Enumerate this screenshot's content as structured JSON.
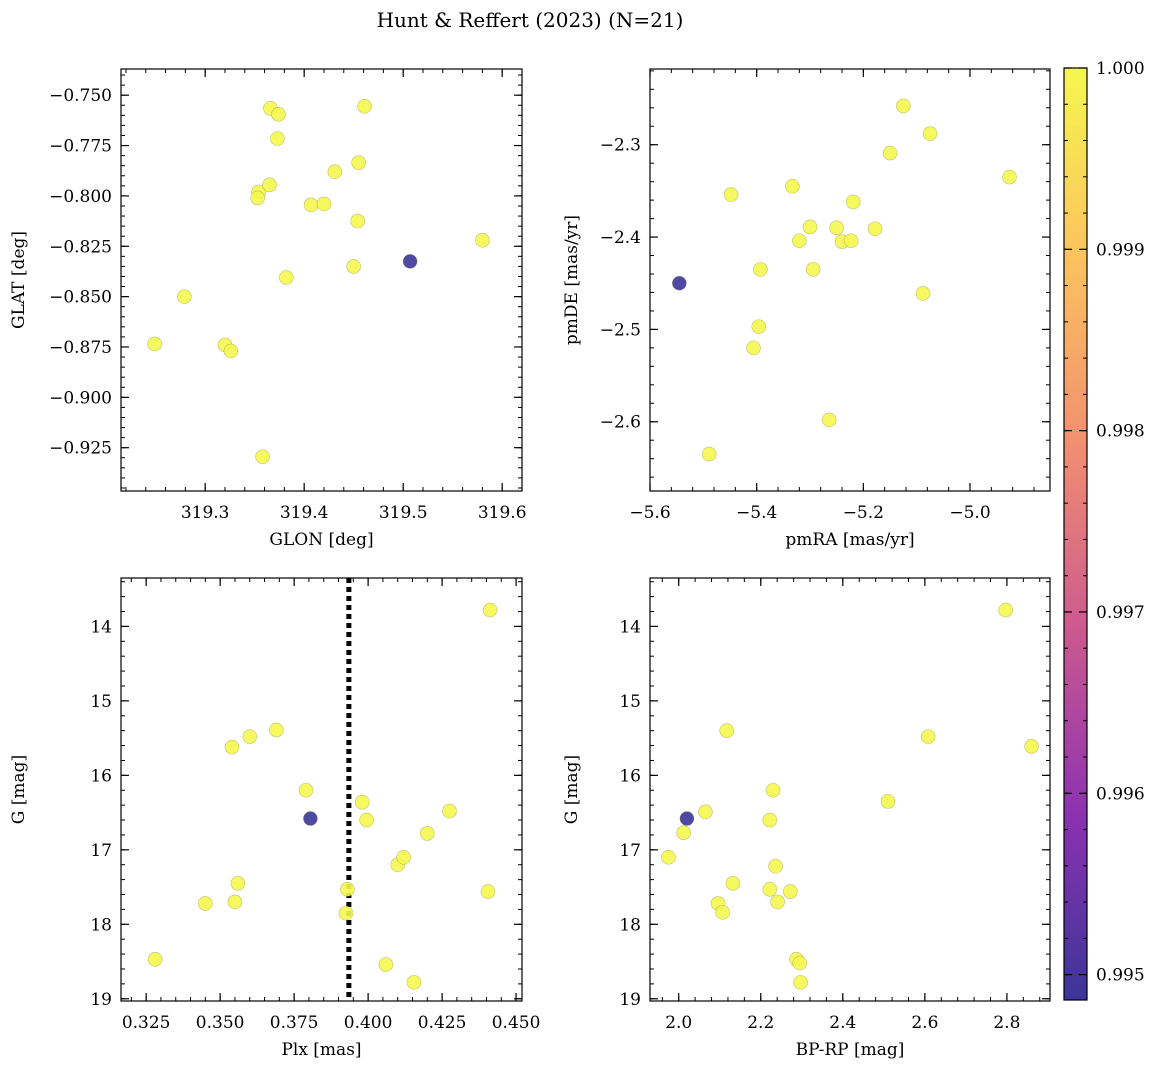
{
  "figure": {
    "title": "Hunt & Reffert (2023) (N=21)"
  },
  "colorbar": {
    "range": [
      0.99486,
      1.0
    ],
    "ticks": [
      0.995,
      0.996,
      0.997,
      0.998,
      0.999,
      1.0
    ],
    "tick_labels": [
      "0.995",
      "0.996",
      "0.997",
      "0.998",
      "0.999",
      "1.000"
    ],
    "colormap": "plasma",
    "stops": [
      "#3b3599",
      "#8c32b0",
      "#cc5a8f",
      "#f29070",
      "#fbc35e",
      "#f5f74f"
    ]
  },
  "chart_data": [
    {
      "type": "scatter",
      "name": "glon-glat",
      "xlabel": "GLON [deg]",
      "ylabel": "GLAT [deg]",
      "xlim": [
        319.215,
        319.62
      ],
      "ylim": [
        -0.9465,
        -0.737
      ],
      "inverted_y": false,
      "xticks": [
        319.3,
        319.4,
        319.5,
        319.6
      ],
      "xtick_labels": [
        "319.3",
        "319.4",
        "319.5",
        "319.6"
      ],
      "yticks": [
        -0.75,
        -0.775,
        -0.8,
        -0.825,
        -0.85,
        -0.875,
        -0.9,
        -0.925
      ],
      "ytick_labels": [
        "−0.750",
        "−0.775",
        "−0.800",
        "−0.825",
        "−0.850",
        "−0.875",
        "−0.900",
        "−0.925"
      ],
      "x": [
        319.249,
        319.279,
        319.32,
        319.326,
        319.354,
        319.353,
        319.358,
        319.365,
        319.366,
        319.373,
        319.374,
        319.382,
        319.407,
        319.42,
        319.431,
        319.45,
        319.454,
        319.455,
        319.461,
        319.58,
        319.507
      ],
      "y": [
        -0.8735,
        -0.85,
        -0.874,
        -0.877,
        -0.798,
        -0.801,
        -0.9295,
        -0.7945,
        -0.7565,
        -0.7715,
        -0.7595,
        -0.8405,
        -0.8045,
        -0.804,
        -0.788,
        -0.835,
        -0.8125,
        -0.7835,
        -0.7555,
        -0.822,
        -0.8325
      ],
      "c": [
        1,
        1,
        1,
        1,
        1,
        1,
        1,
        1,
        1,
        1,
        1,
        1,
        1,
        1,
        1,
        1,
        1,
        1,
        1,
        1,
        0.99486
      ]
    },
    {
      "type": "scatter",
      "name": "pmra-pmde",
      "xlabel": "pmRA [mas/yr]",
      "ylabel": "pmDE [mas/yr]",
      "xlim": [
        -5.6,
        -4.85
      ],
      "ylim": [
        -2.675,
        -2.218
      ],
      "inverted_y": false,
      "xticks": [
        -5.6,
        -5.4,
        -5.2,
        -5.0
      ],
      "xtick_labels": [
        "−5.6",
        "−5.4",
        "−5.2",
        "−5.0"
      ],
      "yticks": [
        -2.3,
        -2.4,
        -2.5,
        -2.6
      ],
      "ytick_labels": [
        "−2.3",
        "−2.4",
        "−2.5",
        "−2.6"
      ],
      "x": [
        -5.448,
        -5.489,
        -5.406,
        -5.396,
        -5.393,
        -5.333,
        -5.32,
        -5.3,
        -5.294,
        -5.264,
        -5.25,
        -5.24,
        -5.223,
        -5.219,
        -5.178,
        -5.15,
        -5.125,
        -5.088,
        -5.075,
        -4.926,
        -5.545
      ],
      "y": [
        -2.354,
        -2.635,
        -2.52,
        -2.497,
        -2.435,
        -2.345,
        -2.404,
        -2.389,
        -2.435,
        -2.598,
        -2.39,
        -2.405,
        -2.404,
        -2.362,
        -2.391,
        -2.309,
        -2.258,
        -2.461,
        -2.288,
        -2.335,
        -2.45
      ],
      "c": [
        1,
        1,
        1,
        1,
        1,
        1,
        1,
        1,
        1,
        1,
        1,
        1,
        1,
        1,
        1,
        1,
        1,
        1,
        1,
        1,
        0.99486
      ]
    },
    {
      "type": "scatter",
      "name": "plx-g",
      "xlabel": "Plx [mas]",
      "ylabel": "G [mag]",
      "xlim": [
        0.3165,
        0.452
      ],
      "ylim": [
        13.35,
        19.03
      ],
      "inverted_y": true,
      "xticks": [
        0.325,
        0.35,
        0.375,
        0.4,
        0.425,
        0.45
      ],
      "xtick_labels": [
        "0.325",
        "0.350",
        "0.375",
        "0.400",
        "0.425",
        "0.450"
      ],
      "yticks": [
        14,
        15,
        16,
        17,
        18,
        19
      ],
      "ytick_labels": [
        "14",
        "15",
        "16",
        "17",
        "18",
        "19"
      ],
      "vline": 0.3935,
      "x": [
        0.328,
        0.345,
        0.354,
        0.355,
        0.356,
        0.36,
        0.369,
        0.379,
        0.3925,
        0.393,
        0.398,
        0.3995,
        0.406,
        0.41,
        0.412,
        0.4155,
        0.42,
        0.4275,
        0.4405,
        0.4412,
        0.3805
      ],
      "y": [
        18.47,
        17.72,
        15.62,
        17.7,
        17.45,
        15.48,
        15.39,
        16.2,
        17.85,
        17.53,
        16.36,
        16.6,
        18.54,
        17.2,
        17.1,
        18.78,
        16.78,
        16.48,
        17.56,
        13.78,
        16.58
      ],
      "c": [
        1,
        1,
        1,
        1,
        1,
        1,
        1,
        1,
        1,
        1,
        1,
        1,
        1,
        1,
        1,
        1,
        1,
        1,
        1,
        1,
        0.99486
      ]
    },
    {
      "type": "scatter",
      "name": "bprp-g",
      "xlabel": "BP-RP [mag]",
      "ylabel": "G [mag]",
      "xlim": [
        1.93,
        2.905
      ],
      "ylim": [
        13.35,
        19.03
      ],
      "inverted_y": true,
      "xticks": [
        2.0,
        2.2,
        2.4,
        2.6,
        2.8
      ],
      "xtick_labels": [
        "2.0",
        "2.2",
        "2.4",
        "2.6",
        "2.8"
      ],
      "yticks": [
        14,
        15,
        16,
        17,
        18,
        19
      ],
      "ytick_labels": [
        "14",
        "15",
        "16",
        "17",
        "18",
        "19"
      ],
      "x": [
        1.975,
        2.012,
        2.065,
        2.096,
        2.107,
        2.117,
        2.132,
        2.222,
        2.222,
        2.23,
        2.236,
        2.241,
        2.272,
        2.287,
        2.295,
        2.297,
        2.51,
        2.608,
        2.797,
        2.86,
        2.02
      ],
      "y": [
        17.1,
        16.77,
        16.49,
        17.72,
        17.84,
        15.4,
        17.45,
        16.6,
        17.53,
        16.2,
        17.22,
        17.7,
        17.56,
        18.47,
        18.52,
        18.78,
        16.35,
        15.48,
        13.78,
        15.61,
        16.58
      ],
      "c": [
        1,
        1,
        1,
        1,
        1,
        1,
        1,
        1,
        1,
        1,
        1,
        1,
        1,
        1,
        1,
        1,
        1,
        1,
        1,
        1,
        0.99486
      ]
    }
  ]
}
